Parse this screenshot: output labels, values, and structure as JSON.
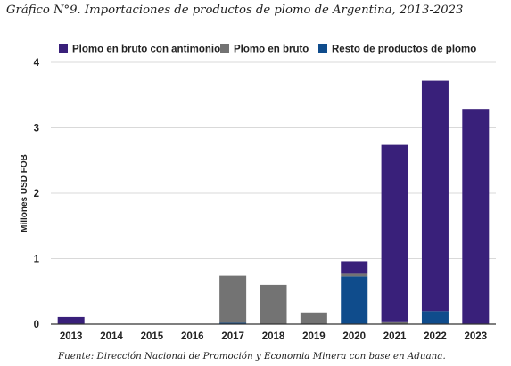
{
  "figure": {
    "title": "Gráfico N°9. Importaciones de productos de plomo de Argentina, 2013-2023",
    "source": "Fuente: Dirección Nacional de Promoción y Economia Minera con base en Aduana."
  },
  "chart_data": {
    "type": "bar",
    "stacked": true,
    "categories": [
      "2013",
      "2014",
      "2015",
      "2016",
      "2017",
      "2018",
      "2019",
      "2020",
      "2021",
      "2022",
      "2023"
    ],
    "series": [
      {
        "name": "Resto de productos de plomo",
        "color": "#0f4c8c",
        "values": [
          0,
          0,
          0.005,
          0.005,
          0.02,
          0,
          0,
          0.73,
          0,
          0.2,
          0
        ]
      },
      {
        "name": "Plomo en bruto",
        "color": "#737373",
        "values": [
          0,
          0,
          0,
          0,
          0.72,
          0.6,
          0.18,
          0.04,
          0.03,
          0,
          0
        ]
      },
      {
        "name": "Plomo en bruto con antimonio",
        "color": "#39207a",
        "values": [
          0.11,
          0,
          0,
          0,
          0,
          0,
          0,
          0.19,
          2.71,
          3.52,
          3.29
        ]
      }
    ],
    "legend_order": [
      "Plomo en bruto con antimonio",
      "Plomo en bruto",
      "Resto de productos de plomo"
    ],
    "ylabel": "Millones USD FOB",
    "xlabel": "",
    "ylim": [
      0,
      4
    ],
    "yticks": [
      0,
      1,
      2,
      3,
      4
    ],
    "grid": true,
    "grid_color": "#d9d9d9",
    "legend_position": "top"
  }
}
